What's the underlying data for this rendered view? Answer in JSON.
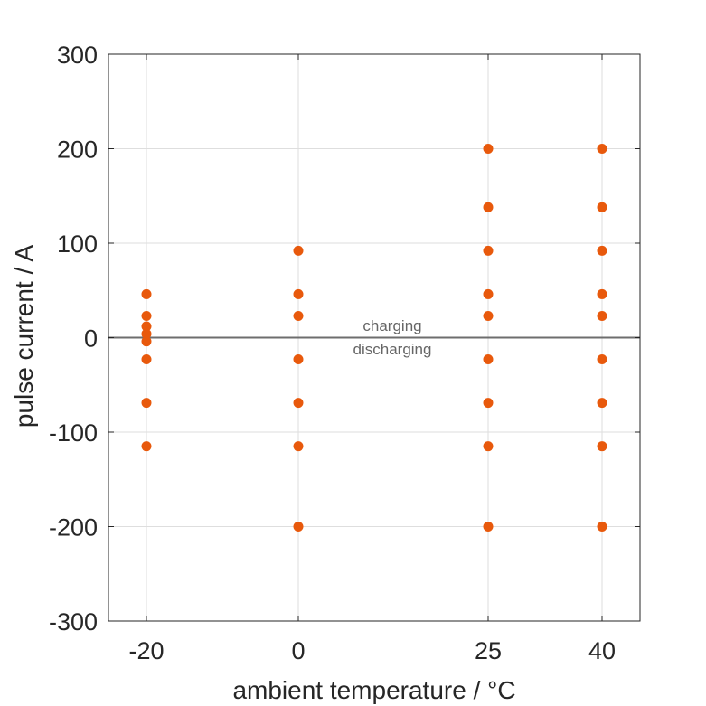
{
  "chart_data": {
    "type": "scatter",
    "xlabel": "ambient temperature / °C",
    "ylabel": "pulse current / A",
    "x_ticks": [
      -20,
      0,
      25,
      40
    ],
    "x_tick_labels": [
      "-20",
      "0",
      "25",
      "40"
    ],
    "y_ticks": [
      -300,
      -200,
      -100,
      0,
      100,
      200,
      300
    ],
    "y_tick_labels": [
      "-300",
      "-200",
      "-100",
      "0",
      "100",
      "200",
      "300"
    ],
    "xlim": [
      -25,
      45
    ],
    "ylim": [
      -300,
      300
    ],
    "grid": true,
    "reference_line": {
      "y": 0,
      "color": "#6e6e6e"
    },
    "annotations": [
      "charging",
      "discharging"
    ],
    "marker_color": "#e8590c",
    "points": [
      {
        "x": -20,
        "y": 46
      },
      {
        "x": -20,
        "y": 23
      },
      {
        "x": -20,
        "y": 12
      },
      {
        "x": -20,
        "y": 4
      },
      {
        "x": -20,
        "y": -4
      },
      {
        "x": -20,
        "y": -23
      },
      {
        "x": -20,
        "y": -69
      },
      {
        "x": -20,
        "y": -115
      },
      {
        "x": 0,
        "y": 92
      },
      {
        "x": 0,
        "y": 46
      },
      {
        "x": 0,
        "y": 23
      },
      {
        "x": 0,
        "y": -23
      },
      {
        "x": 0,
        "y": -69
      },
      {
        "x": 0,
        "y": -115
      },
      {
        "x": 0,
        "y": -200
      },
      {
        "x": 25,
        "y": 200
      },
      {
        "x": 25,
        "y": 138
      },
      {
        "x": 25,
        "y": 92
      },
      {
        "x": 25,
        "y": 46
      },
      {
        "x": 25,
        "y": 23
      },
      {
        "x": 25,
        "y": -23
      },
      {
        "x": 25,
        "y": -69
      },
      {
        "x": 25,
        "y": -115
      },
      {
        "x": 25,
        "y": -200
      },
      {
        "x": 40,
        "y": 200
      },
      {
        "x": 40,
        "y": 138
      },
      {
        "x": 40,
        "y": 92
      },
      {
        "x": 40,
        "y": 46
      },
      {
        "x": 40,
        "y": 23
      },
      {
        "x": 40,
        "y": -23
      },
      {
        "x": 40,
        "y": -69
      },
      {
        "x": 40,
        "y": -115
      },
      {
        "x": 40,
        "y": -200
      }
    ]
  }
}
